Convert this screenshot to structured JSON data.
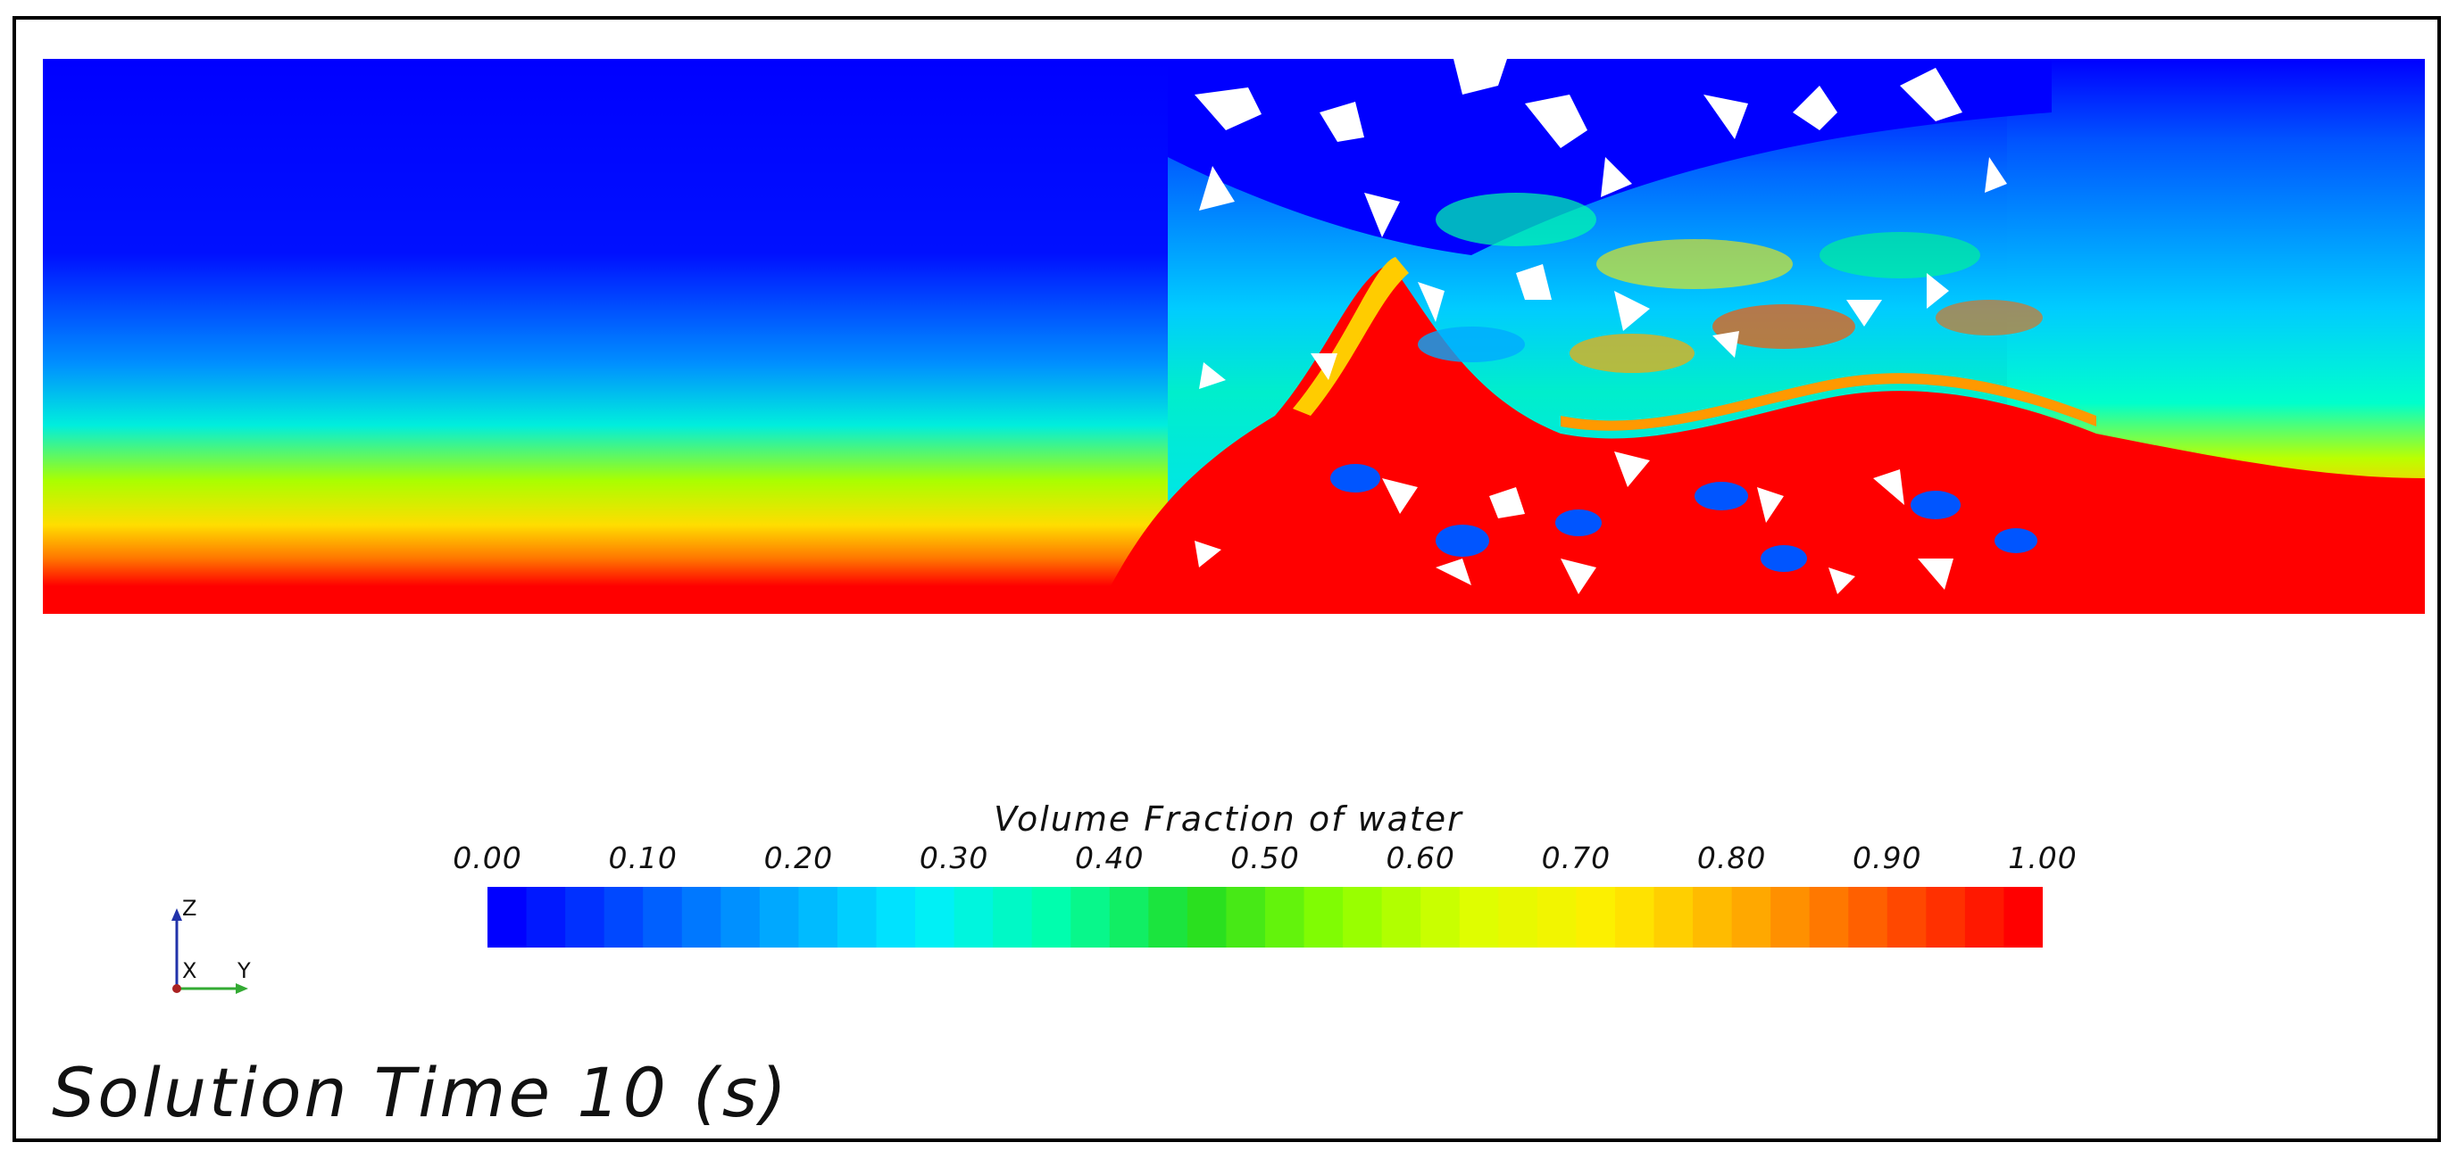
{
  "legend": {
    "title": "Volume Fraction of water",
    "ticks": [
      "0.00",
      "0.10",
      "0.20",
      "0.30",
      "0.40",
      "0.50",
      "0.60",
      "0.70",
      "0.80",
      "0.90",
      "1.00"
    ],
    "colors": [
      "#0000ff",
      "#0055ff",
      "#00aaff",
      "#00eeff",
      "#00ffaa",
      "#22dd22",
      "#88ff00",
      "#ddff00",
      "#ffee00",
      "#ffaa00",
      "#ff5500",
      "#ff0000"
    ]
  },
  "axes": {
    "z_label": "Z",
    "x_label": "X",
    "y_label": "Y"
  },
  "solution_time": "Solution Time 10 (s)"
}
